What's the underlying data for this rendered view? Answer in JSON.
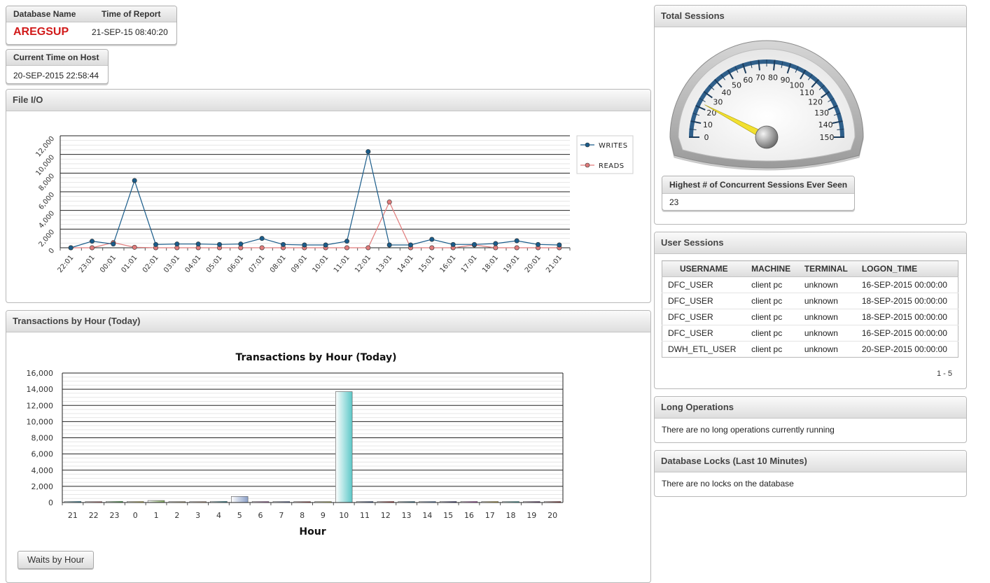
{
  "report_info": {
    "db_name_header": "Database Name",
    "time_header": "Time of Report",
    "db_name": "AREGSUP",
    "report_time": "21-SEP-15 08:40:20"
  },
  "host_time": {
    "header": "Current Time on Host",
    "value": "20-SEP-2015 22:58:44"
  },
  "file_io": {
    "title": "File I/O",
    "chart_data": {
      "type": "line",
      "categories": [
        "22:01",
        "23:01",
        "00:01",
        "01:01",
        "02:01",
        "03:01",
        "04:01",
        "05:01",
        "06:01",
        "07:01",
        "08:01",
        "09:01",
        "10:01",
        "11:01",
        "12:01",
        "13:01",
        "14:01",
        "15:01",
        "16:01",
        "17:01",
        "18:01",
        "19:01",
        "20:01",
        "21:01"
      ],
      "series": [
        {
          "name": "WRITES",
          "color": "#1a5c8a",
          "values": [
            0,
            700,
            400,
            7200,
            350,
            400,
            400,
            350,
            400,
            1000,
            350,
            300,
            300,
            700,
            10300,
            300,
            300,
            900,
            350,
            350,
            450,
            750,
            350,
            300
          ]
        },
        {
          "name": "READS",
          "color": "#e07a7a",
          "values": [
            0,
            0,
            550,
            50,
            0,
            0,
            0,
            0,
            0,
            0,
            0,
            0,
            0,
            0,
            0,
            4900,
            0,
            0,
            0,
            300,
            0,
            0,
            0,
            0
          ]
        }
      ],
      "ylim": [
        0,
        12000
      ],
      "yticks": [
        "0",
        "2,000",
        "4,000",
        "6,000",
        "8,000",
        "10,000",
        "12,000"
      ],
      "legend": "right"
    }
  },
  "transactions": {
    "title": "Transactions by Hour (Today)",
    "chart_data": {
      "type": "bar",
      "title": "Transactions by Hour (Today)",
      "xlabel": "Hour",
      "categories": [
        "21",
        "22",
        "23",
        "0",
        "1",
        "2",
        "3",
        "4",
        "5",
        "6",
        "7",
        "8",
        "9",
        "10",
        "11",
        "12",
        "13",
        "14",
        "15",
        "16",
        "17",
        "18",
        "19",
        "20"
      ],
      "values": [
        150,
        120,
        150,
        130,
        250,
        120,
        120,
        150,
        750,
        130,
        130,
        120,
        120,
        13700,
        130,
        130,
        130,
        130,
        130,
        130,
        130,
        130,
        130,
        130
      ],
      "colors": [
        "#4aa0b8",
        "#e07a7a",
        "#58b858",
        "#e0d050",
        "#7fa85a",
        "#c8b880",
        "#d8a888",
        "#3a9aa8",
        "#8aa0c8",
        "#c070c0",
        "#7080c0",
        "#c04848",
        "#e0e060",
        "#5cc8c8",
        "#4060a0",
        "#c03030",
        "#3080a0",
        "#6090d0",
        "#303080",
        "#c040c0",
        "#e0c040",
        "#40c0c0",
        "#704080",
        "#a03030"
      ],
      "ylim": [
        0,
        16000
      ],
      "yticks": [
        "0",
        "2,000",
        "4,000",
        "6,000",
        "8,000",
        "10,000",
        "12,000",
        "14,000",
        "16,000"
      ]
    },
    "button_label": "Waits by Hour"
  },
  "total_sessions": {
    "title": "Total Sessions",
    "gauge_value": 23,
    "gauge_max": 150,
    "gauge_labels": [
      "0",
      "10",
      "20",
      "30",
      "40",
      "50",
      "60",
      "70",
      "80",
      "90",
      "100",
      "110",
      "120",
      "130",
      "140",
      "150"
    ],
    "highest_header": "Highest # of Concurrent Sessions Ever Seen",
    "highest_value": "23"
  },
  "user_sessions": {
    "title": "User Sessions",
    "columns": [
      "USERNAME",
      "MACHINE",
      "TERMINAL",
      "LOGON_TIME"
    ],
    "rows": [
      [
        "DFC_USER",
        "client pc",
        "unknown",
        "16-SEP-2015 00:00:00"
      ],
      [
        "DFC_USER",
        "client pc",
        "unknown",
        "18-SEP-2015 00:00:00"
      ],
      [
        "DFC_USER",
        "client pc",
        "unknown",
        "18-SEP-2015 00:00:00"
      ],
      [
        "DFC_USER",
        "client pc",
        "unknown",
        "16-SEP-2015 00:00:00"
      ],
      [
        "DWH_ETL_USER",
        "client pc",
        "unknown",
        "20-SEP-2015 00:00:00"
      ]
    ],
    "pagination": "1 - 5"
  },
  "long_ops": {
    "title": "Long Operations",
    "message": "There are no long operations currently running"
  },
  "db_locks": {
    "title": "Database Locks (Last 10 Minutes)",
    "message": "There are no locks on the database"
  }
}
